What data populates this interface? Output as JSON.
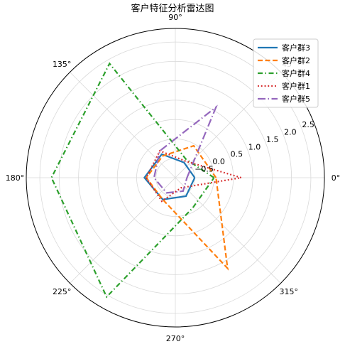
{
  "chart_data": {
    "type": "radar",
    "title": "客户特征分析雷达图",
    "angle_ticks": [
      "0°",
      "45°",
      "90°",
      "135°",
      "180°",
      "225°",
      "270°",
      "315°"
    ],
    "radial_ticks": [
      "−0.5",
      "0.0",
      "0.5",
      "1.0",
      "1.5",
      "2.0",
      "2.5"
    ],
    "rlim": [
      -1.0,
      2.85
    ],
    "grid": true,
    "legend_position": "top-right",
    "series": [
      {
        "name": "客户群3",
        "color": "#1f77b4",
        "dash": "solid",
        "points": [
          [
            0,
            -0.5
          ],
          [
            60,
            -0.55
          ],
          [
            120,
            -0.3
          ],
          [
            180,
            -0.2
          ],
          [
            240,
            -0.35
          ],
          [
            300,
            -0.45
          ]
        ]
      },
      {
        "name": "客户群2",
        "color": "#ff7f0e",
        "dash": "dashed",
        "points": [
          [
            0,
            0.05
          ],
          [
            60,
            -0.05
          ],
          [
            120,
            -0.35
          ],
          [
            180,
            -0.25
          ],
          [
            240,
            -0.35
          ],
          [
            300,
            1.7
          ]
        ]
      },
      {
        "name": "客户群4",
        "color": "#2ca02c",
        "dash": "dashdot",
        "points": [
          [
            0,
            0.0
          ],
          [
            60,
            -0.45
          ],
          [
            120,
            2.4
          ],
          [
            180,
            2.2
          ],
          [
            240,
            2.55
          ],
          [
            300,
            -0.1
          ]
        ]
      },
      {
        "name": "客户群1",
        "color": "#d62728",
        "dash": "dotted",
        "points": [
          [
            0,
            0.7
          ],
          [
            60,
            -0.5
          ],
          [
            120,
            -0.2
          ],
          [
            180,
            -0.25
          ],
          [
            240,
            -0.3
          ],
          [
            300,
            -0.7
          ]
        ]
      },
      {
        "name": "客户群5",
        "color": "#9467bd",
        "dash": "longdashdot",
        "points": [
          [
            0,
            -0.7
          ],
          [
            60,
            1.1
          ],
          [
            120,
            -0.2
          ],
          [
            180,
            -0.45
          ],
          [
            240,
            -0.55
          ],
          [
            300,
            -0.6
          ]
        ]
      }
    ]
  }
}
